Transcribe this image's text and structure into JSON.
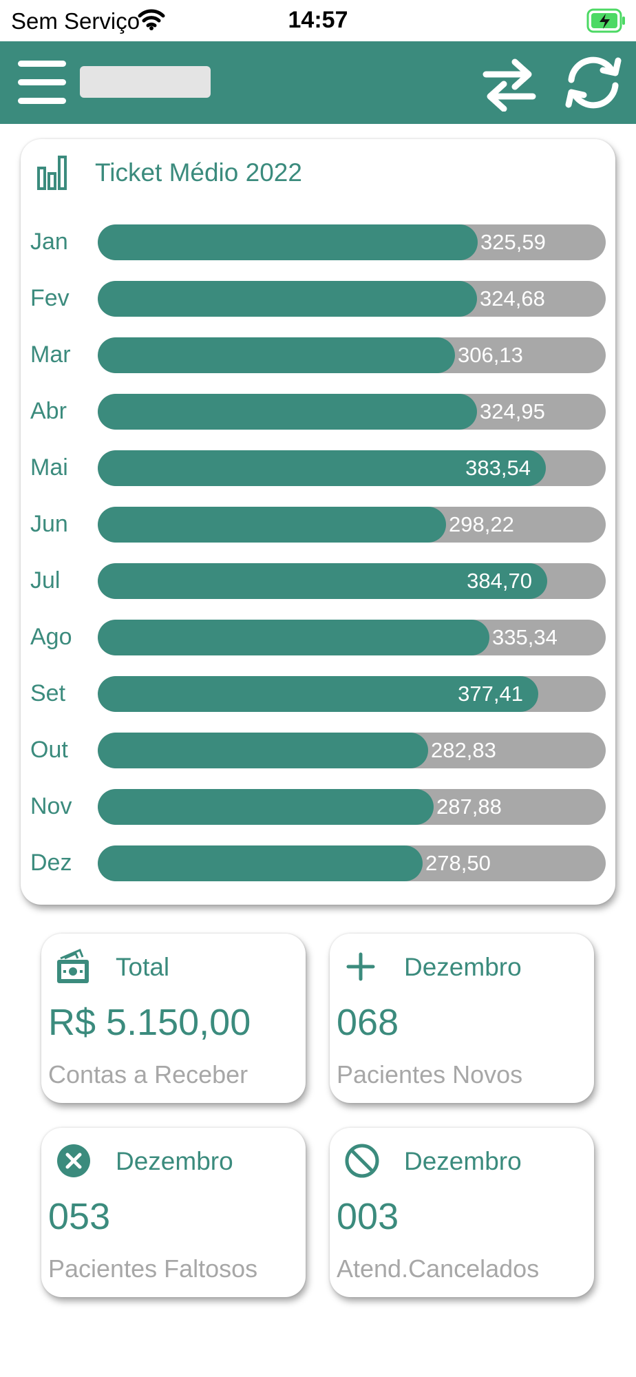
{
  "status_bar": {
    "carrier": "Sem Serviço",
    "time": "14:57",
    "battery_color": "#4cd964"
  },
  "app_bar": {
    "color": "#3b8b7d",
    "menu_icon": "hamburger-menu-icon",
    "switch_icon": "swap-arrows-icon",
    "refresh_icon": "refresh-icon"
  },
  "chart_card": {
    "title": "Ticket Médio 2022",
    "icon": "bar-chart-icon"
  },
  "chart_data": {
    "type": "bar",
    "orientation": "horizontal",
    "title": "Ticket Médio 2022",
    "categories": [
      "Jan",
      "Fev",
      "Mar",
      "Abr",
      "Mai",
      "Jun",
      "Jul",
      "Ago",
      "Set",
      "Out",
      "Nov",
      "Dez"
    ],
    "values": [
      325.59,
      324.68,
      306.13,
      324.95,
      383.54,
      298.22,
      384.7,
      335.34,
      377.41,
      282.83,
      287.88,
      278.5
    ],
    "value_labels": [
      "325,59",
      "324,68",
      "306,13",
      "324,95",
      "383,54",
      "298,22",
      "384,70",
      "335,34",
      "377,41",
      "282,83",
      "287,88",
      "278,50"
    ],
    "xlim": [
      0,
      435
    ],
    "bar_color": "#3b8b7d",
    "track_color": "#a8a8a8",
    "grid": false
  },
  "cards": {
    "total": {
      "icon": "money-icon",
      "heading": "Total",
      "value": "R$ 5.150,00",
      "caption": "Contas a Receber"
    },
    "novos": {
      "icon": "plus-icon",
      "heading": "Dezembro",
      "value": "068",
      "caption": "Pacientes Novos"
    },
    "faltosos": {
      "icon": "x-circle-icon",
      "heading": "Dezembro",
      "value": "053",
      "caption": "Pacientes Faltosos"
    },
    "cancelados": {
      "icon": "prohibited-icon",
      "heading": "Dezembro",
      "value": "003",
      "caption": "Atend.Cancelados"
    }
  }
}
